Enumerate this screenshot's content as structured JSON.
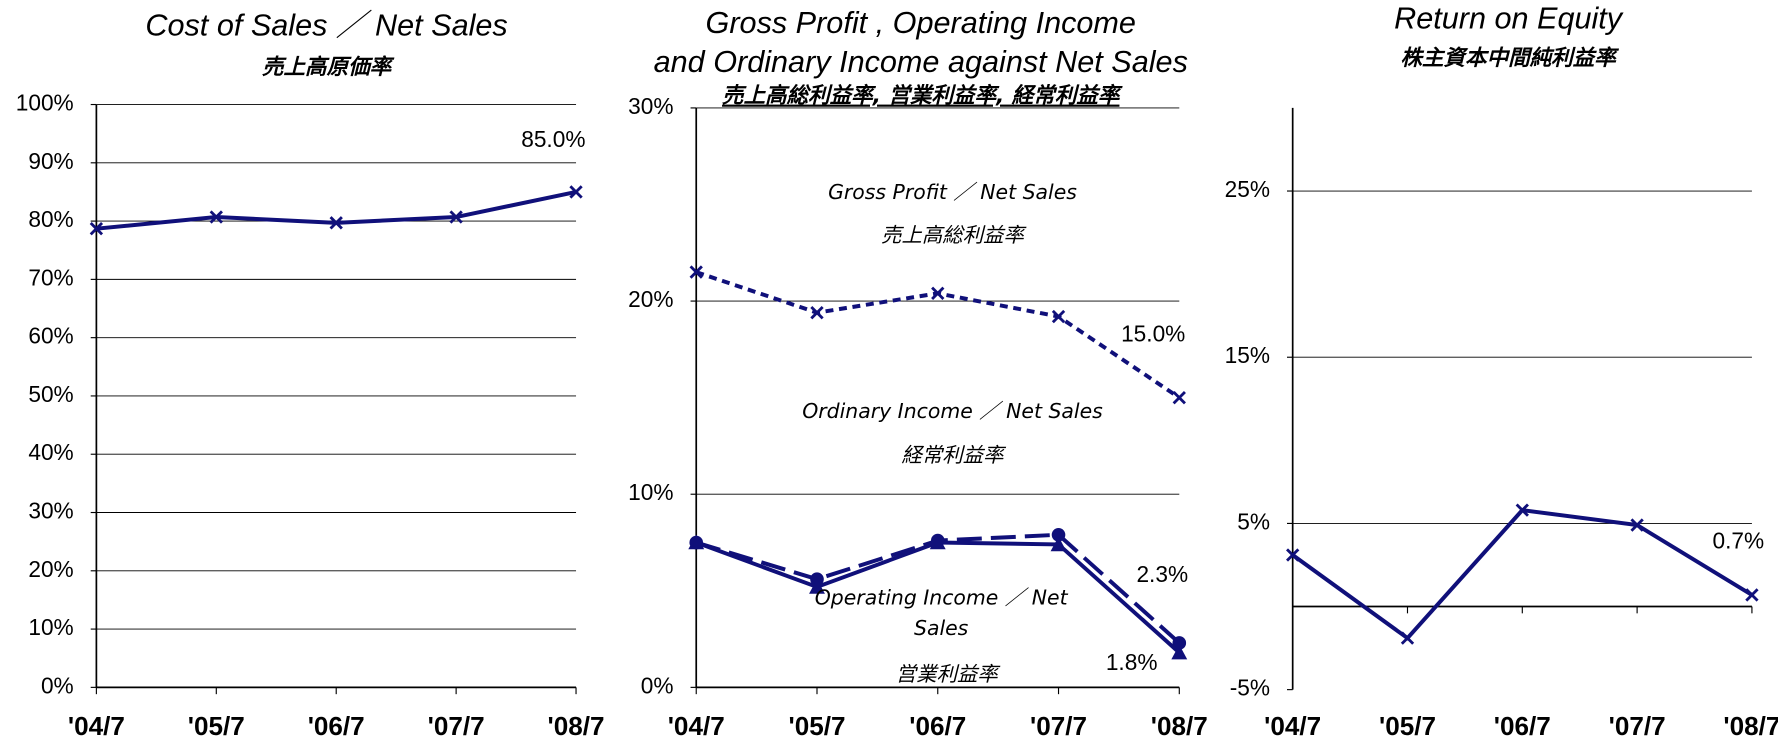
{
  "chart_data": [
    {
      "type": "line",
      "title": [
        "Cost of Sales ／ Net Sales"
      ],
      "subtitle": "売上高原価率",
      "categories": [
        "'04/7",
        "'05/7",
        "'06/7",
        "'07/7",
        "'08/7"
      ],
      "series": [
        {
          "color": "#10107a",
          "marker": "x",
          "line_style": "solid",
          "values": [
            78.7,
            80.7,
            79.7,
            80.7,
            85.0
          ],
          "value_labels": [
            null,
            null,
            null,
            null,
            "85.0%"
          ]
        }
      ],
      "ylim": [
        0,
        100
      ],
      "yticks": [
        {
          "value": 0,
          "label": "0%"
        },
        {
          "value": 10,
          "label": "10%"
        },
        {
          "value": 20,
          "label": "20%"
        },
        {
          "value": 30,
          "label": "30%"
        },
        {
          "value": 40,
          "label": "40%"
        },
        {
          "value": 50,
          "label": "50%"
        },
        {
          "value": 60,
          "label": "60%"
        },
        {
          "value": 70,
          "label": "70%"
        },
        {
          "value": 80,
          "label": "80%"
        },
        {
          "value": 90,
          "label": "90%"
        },
        {
          "value": 100,
          "label": "100%"
        }
      ],
      "grid": true
    },
    {
      "type": "line",
      "title": [
        "Gross Profit , Operating Income",
        "and Ordinary Income against Net Sales"
      ],
      "subtitle": "売上高総利益率, 営業利益率, 経常利益率",
      "categories": [
        "'04/7",
        "'05/7",
        "'06/7",
        "'07/7",
        "'08/7"
      ],
      "series": [
        {
          "color": "#10107a",
          "marker": "x",
          "line_style": "dashed",
          "values": [
            21.5,
            19.4,
            20.4,
            19.2,
            15.0
          ],
          "value_labels": [
            null,
            null,
            null,
            null,
            "15.0%"
          ]
        },
        {
          "color": "#10107a",
          "marker": "circle",
          "line_style": "long-dash",
          "values": [
            7.5,
            5.6,
            7.6,
            7.9,
            2.3
          ],
          "value_labels": [
            null,
            null,
            null,
            null,
            "2.3%"
          ]
        },
        {
          "color": "#10107a",
          "marker": "triangle",
          "line_style": "solid",
          "values": [
            7.5,
            5.2,
            7.5,
            7.4,
            1.8
          ],
          "value_labels": [
            null,
            null,
            null,
            null,
            "1.8%"
          ]
        }
      ],
      "annotations": [
        "Gross Profit ／ Net Sales",
        "売上高総利益率",
        "Ordinary Income ／ Net Sales",
        "経常利益率",
        "Operating Income ／ Net Sales",
        "営業利益率"
      ],
      "ylim": [
        0,
        30
      ],
      "yticks": [
        {
          "value": 0,
          "label": "0%"
        },
        {
          "value": 10,
          "label": "10%"
        },
        {
          "value": 20,
          "label": "20%"
        },
        {
          "value": 30,
          "label": "30%"
        }
      ],
      "grid": true
    },
    {
      "type": "line",
      "title": [
        "Return on Equity"
      ],
      "subtitle": "株主資本中間純利益率",
      "categories": [
        "'04/7",
        "'05/7",
        "'06/7",
        "'07/7",
        "'08/7"
      ],
      "series": [
        {
          "color": "#10107a",
          "marker": "x",
          "line_style": "solid",
          "values": [
            3.1,
            -1.9,
            5.8,
            4.9,
            0.7
          ],
          "value_labels": [
            null,
            null,
            null,
            null,
            "0.7%"
          ]
        }
      ],
      "ylim": [
        -5,
        30
      ],
      "yticks": [
        {
          "value": -5,
          "label": "-5%"
        },
        {
          "value": 5,
          "label": "5%"
        },
        {
          "value": 15,
          "label": "15%"
        },
        {
          "value": 25,
          "label": "25%"
        }
      ],
      "grid": true
    }
  ]
}
